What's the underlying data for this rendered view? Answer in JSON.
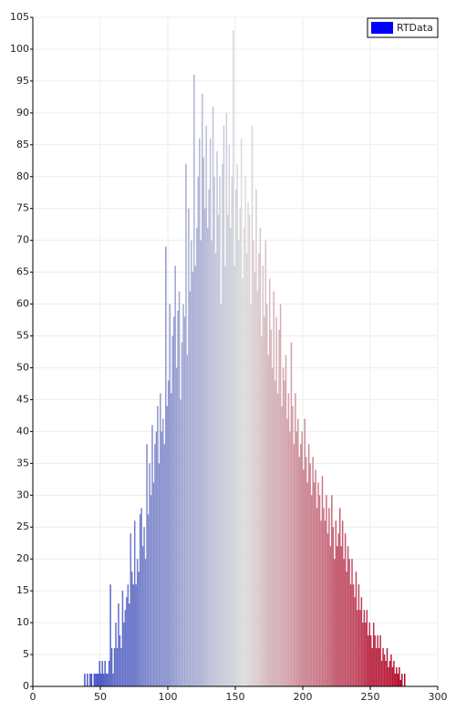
{
  "chart_data": {
    "type": "histogram",
    "legend": {
      "label": "RTData",
      "color": "#0000ff",
      "position": "upper right"
    },
    "colormap": [
      "#3b4cc0",
      "#dddddd",
      "#b40426"
    ],
    "grid": true,
    "xlim": [
      0,
      300
    ],
    "xticks": [
      0,
      50,
      100,
      150,
      200,
      250,
      300
    ],
    "ylim": [
      0,
      105
    ],
    "yticks": [
      0,
      5,
      10,
      15,
      20,
      25,
      30,
      35,
      40,
      45,
      50,
      55,
      60,
      65,
      70,
      75,
      80,
      85,
      90,
      95,
      100,
      105
    ],
    "bins": [
      36,
      37,
      38,
      39,
      40,
      41,
      42,
      43,
      44,
      45,
      46,
      47,
      48,
      49,
      50,
      51,
      52,
      53,
      54,
      55,
      56,
      57,
      58,
      59,
      60,
      61,
      62,
      63,
      64,
      65,
      66,
      67,
      68,
      69,
      70,
      71,
      72,
      73,
      74,
      75,
      76,
      77,
      78,
      79,
      80,
      81,
      82,
      83,
      84,
      85,
      86,
      87,
      88,
      89,
      90,
      91,
      92,
      93,
      94,
      95,
      96,
      97,
      98,
      99,
      100,
      101,
      102,
      103,
      104,
      105,
      106,
      107,
      108,
      109,
      110,
      111,
      112,
      113,
      114,
      115,
      116,
      117,
      118,
      119,
      120,
      121,
      122,
      123,
      124,
      125,
      126,
      127,
      128,
      129,
      130,
      131,
      132,
      133,
      134,
      135,
      136,
      137,
      138,
      139,
      140,
      141,
      142,
      143,
      144,
      145,
      146,
      147,
      148,
      149,
      150,
      151,
      152,
      153,
      154,
      155,
      156,
      157,
      158,
      159,
      160,
      161,
      162,
      163,
      164,
      165,
      166,
      167,
      168,
      169,
      170,
      171,
      172,
      173,
      174,
      175,
      176,
      177,
      178,
      179,
      180,
      181,
      182,
      183,
      184,
      185,
      186,
      187,
      188,
      189,
      190,
      191,
      192,
      193,
      194,
      195,
      196,
      197,
      198,
      199,
      200,
      201,
      202,
      203,
      204,
      205,
      206,
      207,
      208,
      209,
      210,
      211,
      212,
      213,
      214,
      215,
      216,
      217,
      218,
      219,
      220,
      221,
      222,
      223,
      224,
      225,
      226,
      227,
      228,
      229,
      230,
      231,
      232,
      233,
      234,
      235,
      236,
      237,
      238,
      239,
      240,
      241,
      242,
      243,
      244,
      245,
      246,
      247,
      248,
      249,
      250,
      251,
      252,
      253,
      254,
      255,
      256,
      257,
      258,
      259,
      260,
      261,
      262,
      263,
      264,
      265,
      266,
      267,
      268,
      269,
      270,
      271,
      272,
      273,
      274,
      275,
      276
    ],
    "values": [
      0,
      0,
      2,
      0,
      2,
      0,
      2,
      2,
      0,
      2,
      2,
      2,
      2,
      4,
      2,
      4,
      2,
      4,
      2,
      2,
      4,
      16,
      6,
      2,
      6,
      10,
      6,
      13,
      8,
      6,
      15,
      10,
      12,
      14,
      16,
      13,
      24,
      18,
      16,
      26,
      16,
      20,
      18,
      27,
      28,
      22,
      25,
      20,
      38,
      27,
      35,
      30,
      41,
      32,
      38,
      40,
      44,
      35,
      46,
      40,
      42,
      38,
      69,
      44,
      48,
      60,
      46,
      55,
      58,
      66,
      50,
      59,
      62,
      45,
      54,
      60,
      58,
      82,
      52,
      75,
      62,
      70,
      65,
      96,
      66,
      72,
      80,
      86,
      70,
      93,
      83,
      75,
      88,
      72,
      78,
      86,
      70,
      91,
      80,
      68,
      84,
      74,
      80,
      60,
      82,
      88,
      66,
      90,
      74,
      85,
      72,
      80,
      103,
      66,
      78,
      82,
      70,
      75,
      86,
      64,
      72,
      80,
      68,
      76,
      74,
      60,
      88,
      70,
      65,
      78,
      62,
      68,
      72,
      55,
      66,
      58,
      70,
      60,
      52,
      64,
      56,
      50,
      62,
      48,
      58,
      46,
      56,
      60,
      44,
      50,
      48,
      52,
      42,
      46,
      40,
      54,
      44,
      38,
      46,
      40,
      42,
      36,
      38,
      40,
      34,
      42,
      36,
      32,
      38,
      35,
      30,
      36,
      32,
      34,
      28,
      32,
      30,
      26,
      33,
      28,
      26,
      30,
      24,
      28,
      22,
      30,
      25,
      20,
      26,
      22,
      24,
      28,
      22,
      26,
      20,
      24,
      18,
      22,
      20,
      16,
      20,
      16,
      14,
      18,
      12,
      16,
      12,
      14,
      10,
      12,
      10,
      12,
      8,
      10,
      8,
      6,
      10,
      8,
      6,
      8,
      6,
      8,
      4,
      6,
      5,
      4,
      6,
      3,
      4,
      5,
      3,
      4,
      2,
      3,
      2,
      3,
      1,
      2,
      0,
      2
    ]
  }
}
